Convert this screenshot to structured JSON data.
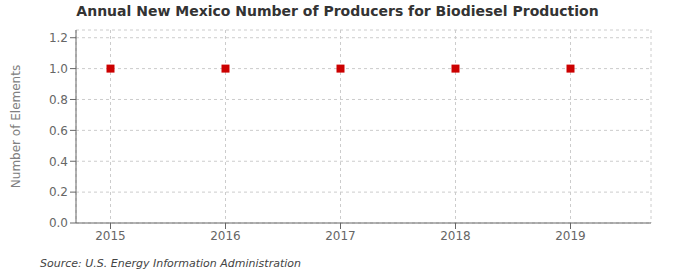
{
  "chart_data": {
    "type": "scatter",
    "title": "Annual New Mexico Number of Producers for Biodiesel Production",
    "ylabel": "Number of Elements",
    "x": [
      2015,
      2016,
      2017,
      2018,
      2019
    ],
    "values": [
      1,
      1,
      1,
      1,
      1
    ],
    "color": "#cc0000",
    "marker": "square",
    "xlim": [
      2014.7,
      2019.7
    ],
    "xticks": [
      2015,
      2016,
      2017,
      2018,
      2019
    ],
    "ylim": [
      0.0,
      1.25
    ],
    "yticks": [
      {
        "value": 0.0,
        "label": "0.0"
      },
      {
        "value": 0.2,
        "label": "0.2"
      },
      {
        "value": 0.4,
        "label": "0.4"
      },
      {
        "value": 0.6,
        "label": "0.6"
      },
      {
        "value": 0.8,
        "label": "0.8"
      },
      {
        "value": 1.0,
        "label": "1.0"
      },
      {
        "value": 1.2,
        "label": "1.2"
      }
    ],
    "grid": true,
    "annotations": [
      "Source: U.S. Energy Information Administration"
    ]
  }
}
